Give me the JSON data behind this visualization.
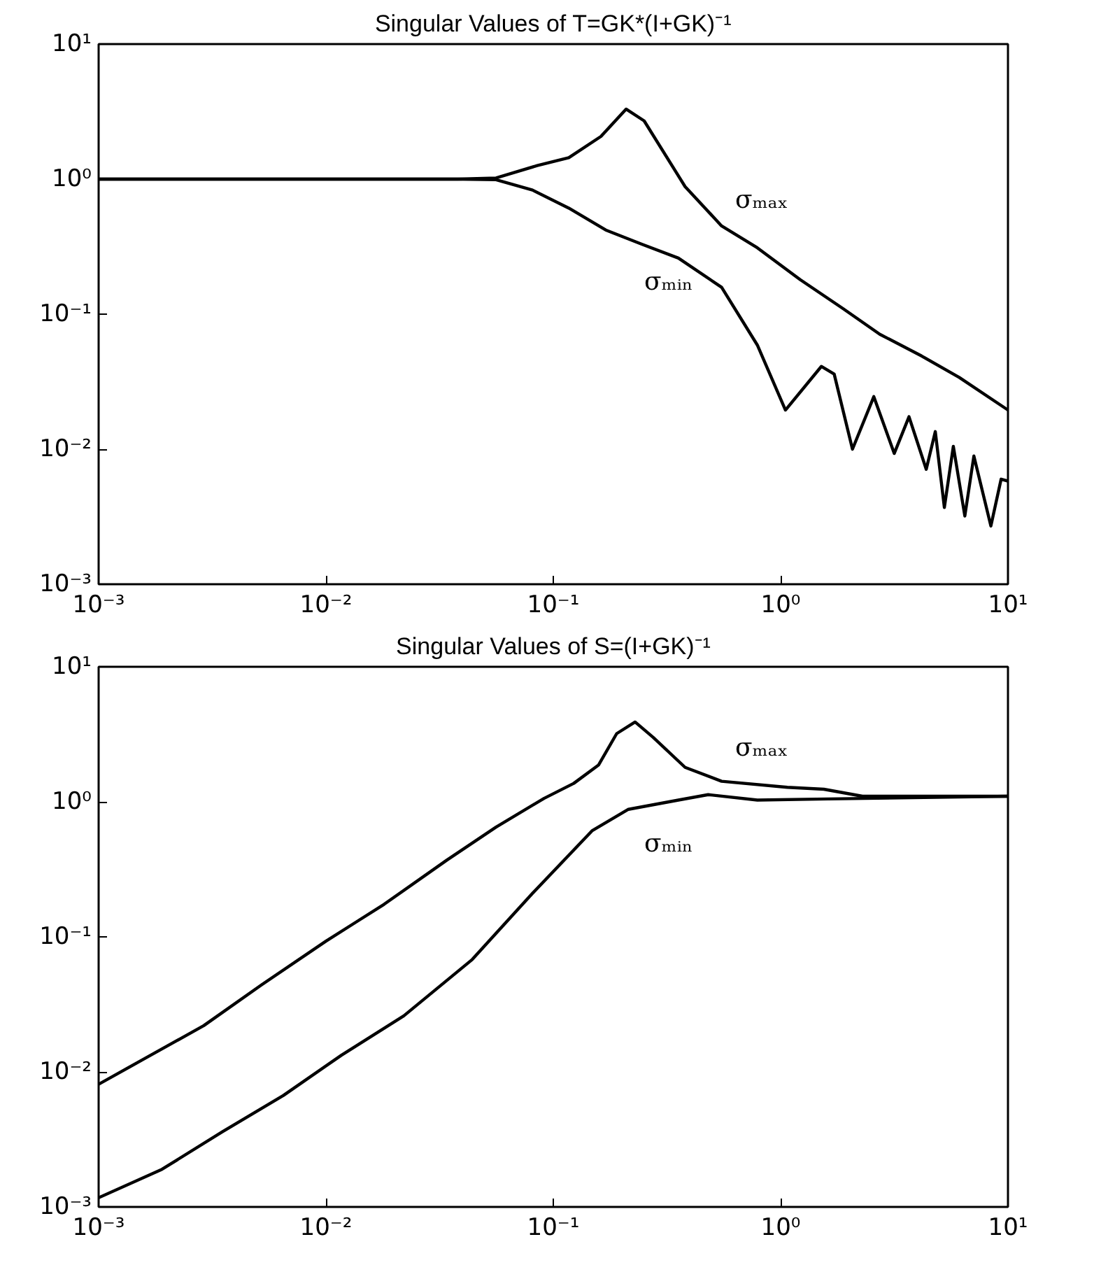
{
  "chart_data": [
    {
      "type": "line",
      "title": "Singular Values of T=GK*(I+GK)⁻¹",
      "log": "xy",
      "xlim": [
        0.001,
        10
      ],
      "ylim": [
        0.001,
        10
      ],
      "xticks": [
        {
          "value": 0.001,
          "label": "10⁻³"
        },
        {
          "value": 0.01,
          "label": "10⁻²"
        },
        {
          "value": 0.1,
          "label": "10⁻¹"
        },
        {
          "value": 1,
          "label": "10⁰"
        },
        {
          "value": 10,
          "label": "10¹"
        }
      ],
      "yticks": [
        {
          "value": 0.001,
          "label": "10⁻³"
        },
        {
          "value": 0.01,
          "label": "10⁻²"
        },
        {
          "value": 0.1,
          "label": "10⁻¹"
        },
        {
          "value": 1,
          "label": "10⁰"
        },
        {
          "value": 10,
          "label": "10¹"
        }
      ],
      "series": [
        {
          "name": "σₘₐₓ",
          "color": "#000000",
          "x": [
            0.001,
            0.038,
            0.056,
            0.085,
            0.117,
            0.162,
            0.209,
            0.251,
            0.38,
            0.55,
            0.79,
            1.22,
            1.88,
            2.73,
            4.17,
            6.1,
            10
          ],
          "values": [
            1.0,
            1.0,
            1.02,
            1.26,
            1.44,
            2.07,
            3.3,
            2.7,
            0.88,
            0.45,
            0.31,
            0.18,
            0.11,
            0.071,
            0.049,
            0.034,
            0.0195
          ]
        },
        {
          "name": "σₘᵢₙ",
          "color": "#000000",
          "x": [
            0.001,
            0.038,
            0.056,
            0.081,
            0.117,
            0.17,
            0.245,
            0.355,
            0.55,
            0.79,
            1.05,
            1.51,
            1.72,
            2.07,
            2.57,
            3.16,
            3.67,
            4.37,
            4.79,
            5.25,
            5.75,
            6.46,
            7.08,
            8.41,
            9.33,
            10
          ],
          "values": [
            1.0,
            1.0,
            0.99,
            0.83,
            0.61,
            0.42,
            0.33,
            0.26,
            0.158,
            0.059,
            0.0195,
            0.041,
            0.036,
            0.01,
            0.0245,
            0.0093,
            0.0174,
            0.0071,
            0.0135,
            0.0037,
            0.0105,
            0.0032,
            0.0089,
            0.0027,
            0.006,
            0.0058
          ]
        }
      ],
      "legend": false
    },
    {
      "type": "line",
      "title": "Singular Values of S=(I+GK)⁻¹",
      "log": "xy",
      "xlim": [
        0.001,
        10
      ],
      "ylim": [
        0.001,
        10
      ],
      "xticks": [
        {
          "value": 0.001,
          "label": "10⁻³"
        },
        {
          "value": 0.01,
          "label": "10⁻²"
        },
        {
          "value": 0.1,
          "label": "10⁻¹"
        },
        {
          "value": 1,
          "label": "10⁰"
        },
        {
          "value": 10,
          "label": "10¹"
        }
      ],
      "yticks": [
        {
          "value": 0.001,
          "label": "10⁻³"
        },
        {
          "value": 0.01,
          "label": "10⁻²"
        },
        {
          "value": 0.1,
          "label": "10⁻¹"
        },
        {
          "value": 1,
          "label": "10⁰"
        },
        {
          "value": 10,
          "label": "10¹"
        }
      ],
      "series": [
        {
          "name": "σₘₐₓ",
          "color": "#000000",
          "x": [
            0.001,
            0.0016,
            0.0029,
            0.0052,
            0.01,
            0.018,
            0.034,
            0.056,
            0.091,
            0.123,
            0.158,
            0.19,
            0.229,
            0.275,
            0.38,
            0.55,
            1.07,
            1.55,
            2.29,
            10
          ],
          "values": [
            0.0081,
            0.0126,
            0.022,
            0.044,
            0.093,
            0.174,
            0.37,
            0.65,
            1.06,
            1.37,
            1.87,
            3.2,
            3.9,
            3.0,
            1.8,
            1.42,
            1.28,
            1.24,
            1.1,
            1.1
          ]
        },
        {
          "name": "σₘᵢₙ",
          "color": "#000000",
          "x": [
            0.001,
            0.0019,
            0.0035,
            0.0065,
            0.0117,
            0.022,
            0.044,
            0.081,
            0.148,
            0.214,
            0.355,
            0.48,
            0.79,
            1.62,
            10
          ],
          "values": [
            0.00117,
            0.0019,
            0.0036,
            0.0067,
            0.0133,
            0.026,
            0.068,
            0.21,
            0.61,
            0.88,
            1.03,
            1.13,
            1.03,
            1.05,
            1.1
          ]
        }
      ],
      "legend": false
    }
  ]
}
